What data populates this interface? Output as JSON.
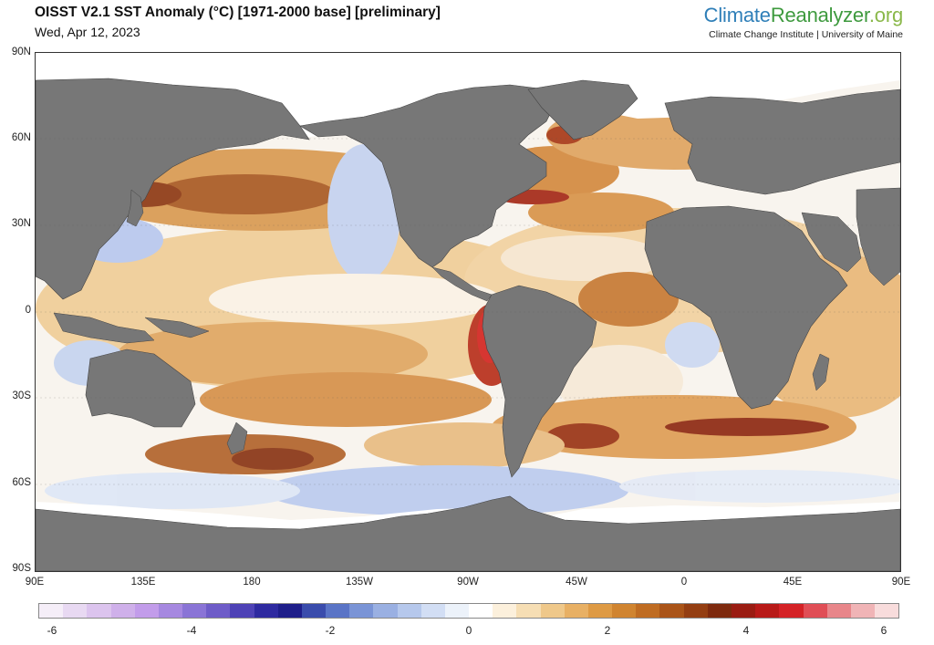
{
  "header": {
    "title": "OISST V2.1 SST Anomaly (°C) [1971-2000 base] [preliminary]",
    "date": "Wed, Apr 12, 2023"
  },
  "brand": {
    "part1": "Climate",
    "part2": "Reanalyzer",
    "part3": ".org",
    "subtitle": "Climate Change Institute | University of Maine"
  },
  "map": {
    "lat_labels": [
      "90N",
      "60N",
      "30N",
      "0",
      "30S",
      "60S",
      "90S"
    ],
    "lon_labels": [
      "90E",
      "135E",
      "180",
      "135W",
      "90W",
      "45W",
      "0",
      "45E",
      "90E"
    ],
    "land_color": "#777777",
    "ice_color": "#ffffff"
  },
  "colorbar": {
    "tick_labels": [
      "-6",
      "-4",
      "-2",
      "0",
      "2",
      "4",
      "6"
    ],
    "colors": [
      "#f5eef8",
      "#e8d9f2",
      "#dcc4ee",
      "#cfb0ea",
      "#c29cea",
      "#a688e0",
      "#8a74d6",
      "#6e5cc8",
      "#4e42b6",
      "#2e2aa0",
      "#1e1e8a",
      "#3a4cac",
      "#5a74c6",
      "#7a94d6",
      "#9ab0e2",
      "#b6c8ec",
      "#d2def4",
      "#ecf2fa",
      "#ffffff",
      "#fcf0dc",
      "#f6deb4",
      "#efc88a",
      "#e8b064",
      "#de9a44",
      "#d08430",
      "#bf6c22",
      "#aa5418",
      "#943e12",
      "#7e2a0e",
      "#9a1c12",
      "#b81a18",
      "#d42226",
      "#e04e56",
      "#e8868a",
      "#f0b4b6",
      "#f8dcdc"
    ]
  }
}
